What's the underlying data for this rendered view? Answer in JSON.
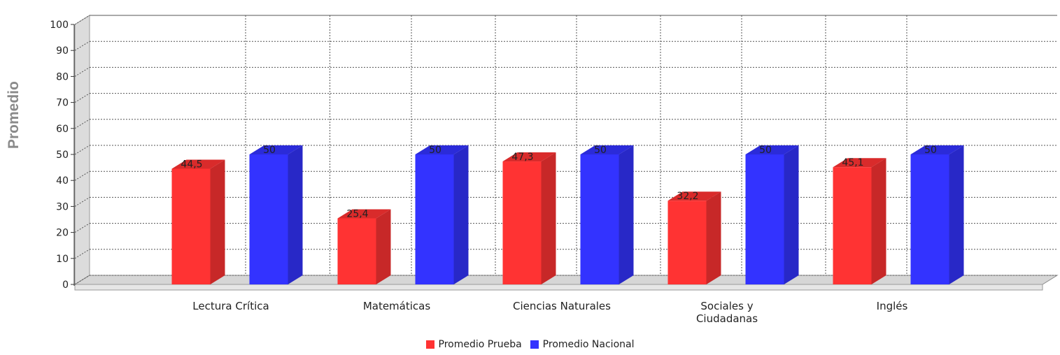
{
  "chart_data": {
    "type": "bar",
    "title": "",
    "xlabel": "",
    "ylabel": "Promedio",
    "ylim": [
      0,
      100
    ],
    "yticks": [
      0,
      10,
      20,
      30,
      40,
      50,
      60,
      70,
      80,
      90,
      100
    ],
    "grid": true,
    "legend_position": "bottom",
    "categories": [
      [
        "Lectura Crítica"
      ],
      [
        "Matemáticas"
      ],
      [
        "Ciencias Naturales"
      ],
      [
        "Sociales y",
        "Ciudadanas"
      ],
      [
        "Inglés"
      ]
    ],
    "series": [
      {
        "name": "Promedio Prueba",
        "color": "#ff3333",
        "values": [
          44.5,
          25.4,
          47.3,
          32.2,
          45.1
        ],
        "labels": [
          "44,5",
          "25,4",
          "47,3",
          "32,2",
          "45,1"
        ]
      },
      {
        "name": "Promedio Nacional",
        "color": "#3333ff",
        "values": [
          50,
          50,
          50,
          50,
          50
        ],
        "labels": [
          "50",
          "50",
          "50",
          "50",
          "50"
        ]
      }
    ]
  }
}
